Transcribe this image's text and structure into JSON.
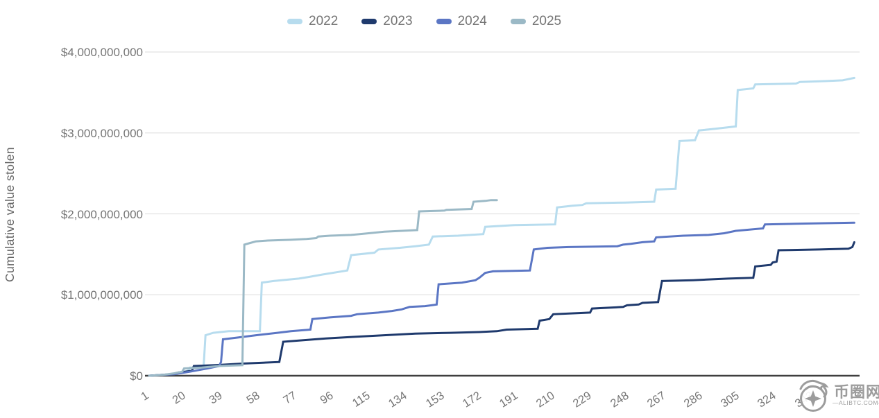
{
  "chart_data": {
    "type": "line",
    "title": "",
    "xlabel": "",
    "ylabel": "Cumulative value stolen",
    "values_unit": "USD billions",
    "xlim": [
      1,
      366
    ],
    "ylim_billions": [
      0,
      4
    ],
    "grid": "horizontal",
    "legend_position": "top",
    "y_ticks": [
      {
        "label": "$0",
        "value_billions": 0
      },
      {
        "label": "$1,000,000,000",
        "value_billions": 1
      },
      {
        "label": "$2,000,000,000",
        "value_billions": 2
      },
      {
        "label": "$3,000,000,000",
        "value_billions": 3
      },
      {
        "label": "$4,000,000,000",
        "value_billions": 4
      }
    ],
    "x_ticks": [
      1,
      20,
      39,
      58,
      77,
      96,
      115,
      134,
      153,
      172,
      191,
      210,
      229,
      248,
      267,
      286,
      305,
      324,
      343
    ],
    "series": [
      {
        "name": "2022",
        "color": "#b7dcee",
        "points": [
          [
            1,
            0
          ],
          [
            12,
            0.02
          ],
          [
            18,
            0.04
          ],
          [
            21,
            0.06
          ],
          [
            22,
            0.1
          ],
          [
            29,
            0.1
          ],
          [
            30,
            0.5
          ],
          [
            34,
            0.53
          ],
          [
            42,
            0.55
          ],
          [
            58,
            0.55
          ],
          [
            59,
            1.15
          ],
          [
            65,
            1.17
          ],
          [
            78,
            1.2
          ],
          [
            83,
            1.22
          ],
          [
            90,
            1.25
          ],
          [
            103,
            1.3
          ],
          [
            105,
            1.49
          ],
          [
            117,
            1.52
          ],
          [
            119,
            1.56
          ],
          [
            130,
            1.58
          ],
          [
            138,
            1.6
          ],
          [
            145,
            1.62
          ],
          [
            147,
            1.72
          ],
          [
            160,
            1.73
          ],
          [
            173,
            1.75
          ],
          [
            174,
            1.84
          ],
          [
            189,
            1.86
          ],
          [
            210,
            1.87
          ],
          [
            211,
            2.08
          ],
          [
            219,
            2.1
          ],
          [
            224,
            2.11
          ],
          [
            226,
            2.13
          ],
          [
            246,
            2.14
          ],
          [
            261,
            2.15
          ],
          [
            262,
            2.3
          ],
          [
            272,
            2.31
          ],
          [
            274,
            2.9
          ],
          [
            282,
            2.91
          ],
          [
            284,
            3.03
          ],
          [
            292,
            3.05
          ],
          [
            303,
            3.08
          ],
          [
            304,
            3.53
          ],
          [
            312,
            3.55
          ],
          [
            313,
            3.6
          ],
          [
            334,
            3.61
          ],
          [
            336,
            3.63
          ],
          [
            349,
            3.64
          ],
          [
            358,
            3.65
          ],
          [
            360,
            3.66
          ],
          [
            364,
            3.68
          ]
        ]
      },
      {
        "name": "2023",
        "color": "#1f3a6d",
        "points": [
          [
            1,
            0
          ],
          [
            13,
            0.02
          ],
          [
            16,
            0.04
          ],
          [
            23,
            0.06
          ],
          [
            24,
            0.12
          ],
          [
            35,
            0.13
          ],
          [
            49,
            0.15
          ],
          [
            68,
            0.17
          ],
          [
            70,
            0.42
          ],
          [
            81,
            0.44
          ],
          [
            92,
            0.46
          ],
          [
            106,
            0.48
          ],
          [
            122,
            0.5
          ],
          [
            138,
            0.52
          ],
          [
            156,
            0.53
          ],
          [
            171,
            0.54
          ],
          [
            180,
            0.55
          ],
          [
            185,
            0.57
          ],
          [
            201,
            0.58
          ],
          [
            202,
            0.68
          ],
          [
            207,
            0.7
          ],
          [
            208,
            0.73
          ],
          [
            209,
            0.76
          ],
          [
            228,
            0.78
          ],
          [
            229,
            0.83
          ],
          [
            245,
            0.85
          ],
          [
            247,
            0.87
          ],
          [
            253,
            0.88
          ],
          [
            255,
            0.9
          ],
          [
            263,
            0.91
          ],
          [
            265,
            1.17
          ],
          [
            281,
            1.18
          ],
          [
            299,
            1.2
          ],
          [
            312,
            1.21
          ],
          [
            313,
            1.35
          ],
          [
            321,
            1.37
          ],
          [
            322,
            1.4
          ],
          [
            324,
            1.41
          ],
          [
            325,
            1.55
          ],
          [
            346,
            1.56
          ],
          [
            361,
            1.57
          ],
          [
            363,
            1.59
          ],
          [
            364,
            1.65
          ]
        ]
      },
      {
        "name": "2024",
        "color": "#5b76c4",
        "points": [
          [
            1,
            0
          ],
          [
            14,
            0.02
          ],
          [
            22,
            0.05
          ],
          [
            31,
            0.09
          ],
          [
            37,
            0.12
          ],
          [
            38,
            0.17
          ],
          [
            39,
            0.45
          ],
          [
            46,
            0.47
          ],
          [
            56,
            0.5
          ],
          [
            67,
            0.53
          ],
          [
            74,
            0.55
          ],
          [
            84,
            0.57
          ],
          [
            85,
            0.7
          ],
          [
            94,
            0.72
          ],
          [
            105,
            0.74
          ],
          [
            108,
            0.76
          ],
          [
            119,
            0.78
          ],
          [
            126,
            0.8
          ],
          [
            131,
            0.82
          ],
          [
            135,
            0.85
          ],
          [
            143,
            0.86
          ],
          [
            149,
            0.88
          ],
          [
            150,
            1.13
          ],
          [
            162,
            1.15
          ],
          [
            169,
            1.18
          ],
          [
            171,
            1.21
          ],
          [
            174,
            1.27
          ],
          [
            178,
            1.29
          ],
          [
            197,
            1.3
          ],
          [
            199,
            1.56
          ],
          [
            206,
            1.58
          ],
          [
            217,
            1.59
          ],
          [
            242,
            1.6
          ],
          [
            245,
            1.62
          ],
          [
            249,
            1.63
          ],
          [
            255,
            1.65
          ],
          [
            261,
            1.66
          ],
          [
            262,
            1.71
          ],
          [
            276,
            1.73
          ],
          [
            289,
            1.74
          ],
          [
            297,
            1.76
          ],
          [
            303,
            1.79
          ],
          [
            317,
            1.82
          ],
          [
            318,
            1.87
          ],
          [
            339,
            1.88
          ],
          [
            364,
            1.89
          ]
        ]
      },
      {
        "name": "2025",
        "color": "#9bb9c6",
        "points": [
          [
            1,
            0
          ],
          [
            8,
            0.01
          ],
          [
            14,
            0.03
          ],
          [
            18,
            0.05
          ],
          [
            19,
            0.09
          ],
          [
            28,
            0.1
          ],
          [
            37,
            0.12
          ],
          [
            49,
            0.13
          ],
          [
            50,
            1.62
          ],
          [
            53,
            1.64
          ],
          [
            56,
            1.66
          ],
          [
            62,
            1.67
          ],
          [
            74,
            1.68
          ],
          [
            82,
            1.69
          ],
          [
            87,
            1.7
          ],
          [
            88,
            1.72
          ],
          [
            94,
            1.73
          ],
          [
            105,
            1.74
          ],
          [
            114,
            1.76
          ],
          [
            122,
            1.78
          ],
          [
            131,
            1.79
          ],
          [
            139,
            1.8
          ],
          [
            140,
            2.03
          ],
          [
            153,
            2.04
          ],
          [
            154,
            2.05
          ],
          [
            167,
            2.06
          ],
          [
            168,
            2.15
          ],
          [
            174,
            2.16
          ],
          [
            177,
            2.17
          ],
          [
            180,
            2.17
          ]
        ]
      }
    ],
    "axis_colors": {
      "baseline": "#3f3f3f",
      "gridline": "#e2e2e2",
      "tick_text": "#757575",
      "axis_title_text": "#646464"
    }
  },
  "watermark": {
    "logo_icon": "dragon-badge-logo",
    "text": "币圈网",
    "subtext": "—ALIBTC.COM—",
    "color": "#9c9c9c"
  }
}
